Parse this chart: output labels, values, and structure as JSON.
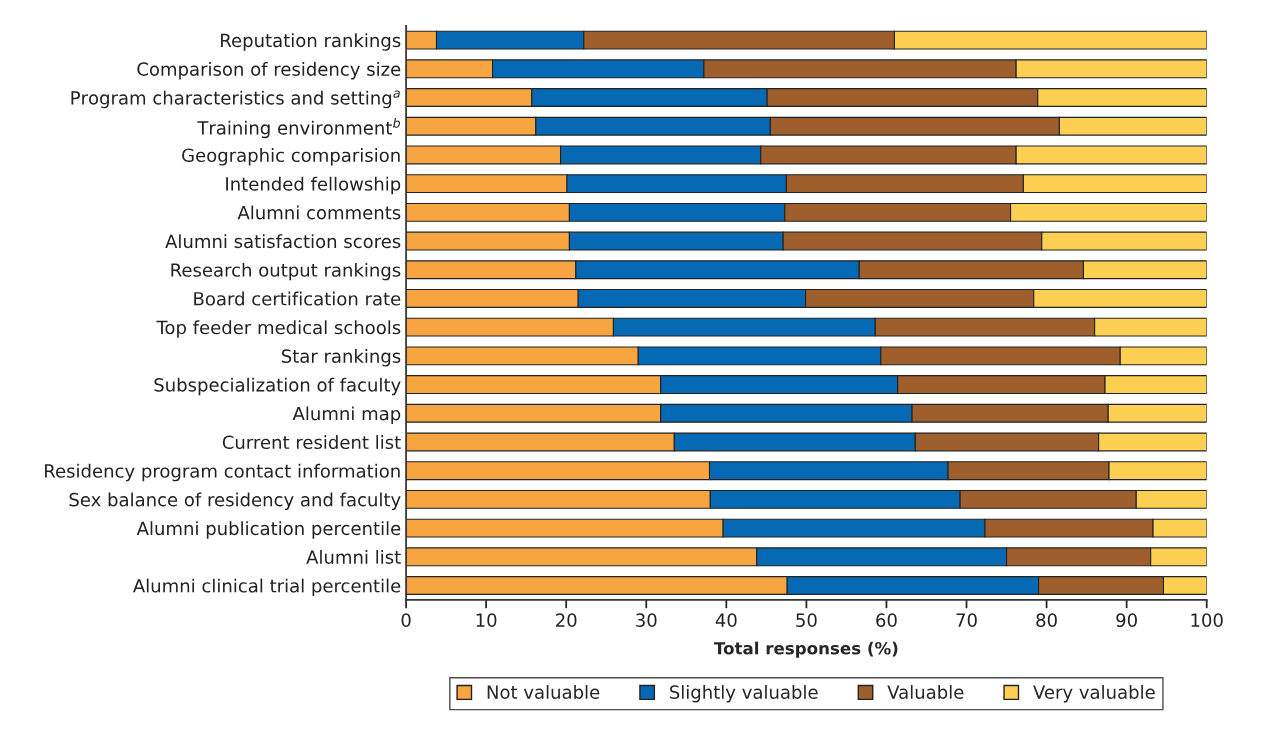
{
  "chart_data": {
    "type": "bar",
    "orientation": "horizontal",
    "stacked": true,
    "xlabel": "Total responses (%)",
    "categories": [
      "Reputation rankings",
      "Comparison of residency size",
      "Program characteristics and setting$^{a}$",
      "Training environment$^{b}$",
      "Geographic comparision",
      "Intended fellowship",
      "Alumni comments",
      "Alumni satisfaction scores",
      "Research output rankings",
      "Board certification rate",
      "Top feeder medical schools",
      "Star rankings",
      "Subspecialization of faculty",
      "Alumni map",
      "Current resident list",
      "Residency program contact information",
      "Sex balance of residency and faculty",
      "Alumni publication percentile",
      "Alumni list",
      "Alumni clinical trial percentile"
    ],
    "series": [
      {
        "name": "Not valuable",
        "color": "#f7a540",
        "values": [
          3.8,
          10.8,
          15.7,
          16.2,
          19.3,
          20.1,
          20.4,
          20.4,
          21.2,
          21.5,
          25.9,
          29.0,
          31.8,
          31.8,
          33.5,
          37.9,
          38.0,
          39.6,
          43.8,
          47.6
        ]
      },
      {
        "name": "Slightly valuable",
        "color": "#0569b3",
        "values": [
          18.4,
          26.4,
          29.4,
          29.3,
          25.0,
          27.4,
          26.9,
          26.7,
          35.4,
          28.4,
          32.7,
          30.3,
          29.6,
          31.4,
          30.1,
          29.8,
          31.2,
          32.7,
          31.2,
          31.4
        ]
      },
      {
        "name": "Valuable",
        "color": "#9e5f2c",
        "values": [
          38.8,
          39.0,
          33.8,
          36.1,
          31.9,
          29.6,
          28.2,
          32.3,
          28.0,
          28.5,
          27.4,
          29.9,
          25.9,
          24.5,
          22.9,
          20.1,
          22.0,
          21.0,
          18.0,
          15.6
        ]
      },
      {
        "name": "Very valuable",
        "color": "#fdd053",
        "values": [
          39.0,
          23.8,
          21.1,
          18.4,
          23.8,
          22.9,
          24.5,
          20.6,
          15.4,
          21.6,
          14.0,
          10.8,
          12.7,
          12.3,
          13.5,
          12.2,
          8.8,
          6.7,
          7.0,
          5.4
        ]
      }
    ],
    "xlim": [
      0,
      100
    ],
    "xticks": [
      0,
      10,
      20,
      30,
      40,
      50,
      60,
      70,
      80,
      90,
      100
    ],
    "grid": false,
    "legend": "bottom"
  }
}
